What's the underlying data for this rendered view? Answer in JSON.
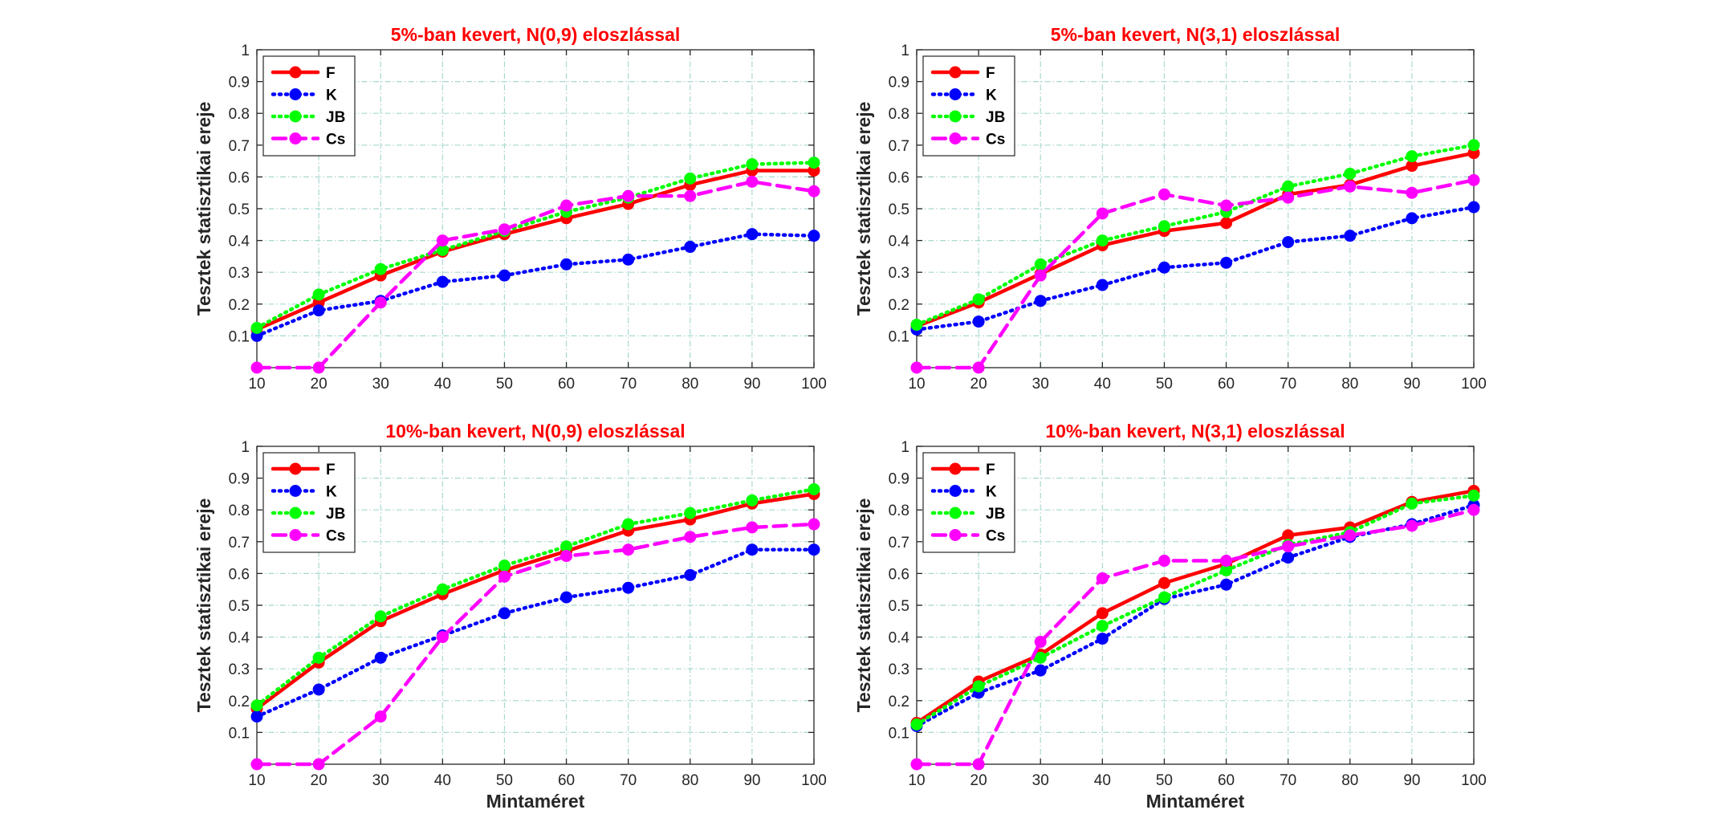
{
  "colors": {
    "F": "#ff0000",
    "K": "#0000ff",
    "JB": "#00ff00",
    "Cs": "#ff00ff",
    "title": "#ff0000",
    "grid": "#a8d8d0"
  },
  "chart_data": [
    {
      "type": "line",
      "title": "5%-ban kevert, N(0,9) eloszlással",
      "xlabel": "",
      "ylabel": "Tesztek statisztikai ereje",
      "x": [
        10,
        20,
        30,
        40,
        50,
        60,
        70,
        80,
        90,
        100
      ],
      "xlim": [
        10,
        100
      ],
      "ylim": [
        0,
        1
      ],
      "xticks": [
        "10",
        "20",
        "30",
        "40",
        "50",
        "60",
        "70",
        "80",
        "90",
        "100"
      ],
      "yticks": [
        "0.1",
        "0.2",
        "0.3",
        "0.4",
        "0.5",
        "0.6",
        "0.7",
        "0.8",
        "0.9",
        "1"
      ],
      "grid": true,
      "legend": "top-left",
      "series": [
        {
          "name": "F",
          "style": "solid",
          "values": [
            0.12,
            0.205,
            0.29,
            0.365,
            0.42,
            0.47,
            0.515,
            0.575,
            0.62,
            0.62
          ]
        },
        {
          "name": "K",
          "style": "dotted",
          "values": [
            0.1,
            0.18,
            0.21,
            0.27,
            0.29,
            0.325,
            0.34,
            0.38,
            0.42,
            0.415
          ]
        },
        {
          "name": "JB",
          "style": "dotted",
          "values": [
            0.125,
            0.23,
            0.31,
            0.37,
            0.43,
            0.49,
            0.535,
            0.595,
            0.64,
            0.645
          ]
        },
        {
          "name": "Cs",
          "style": "dashed",
          "values": [
            0.0,
            0.0,
            0.205,
            0.4,
            0.435,
            0.51,
            0.54,
            0.54,
            0.585,
            0.555
          ]
        }
      ]
    },
    {
      "type": "line",
      "title": "5%-ban kevert, N(3,1) eloszlással",
      "xlabel": "",
      "ylabel": "Tesztek statisztikai ereje",
      "x": [
        10,
        20,
        30,
        40,
        50,
        60,
        70,
        80,
        90,
        100
      ],
      "xlim": [
        10,
        100
      ],
      "ylim": [
        0,
        1
      ],
      "xticks": [
        "10",
        "20",
        "30",
        "40",
        "50",
        "60",
        "70",
        "80",
        "90",
        "100"
      ],
      "yticks": [
        "0.1",
        "0.2",
        "0.3",
        "0.4",
        "0.5",
        "0.6",
        "0.7",
        "0.8",
        "0.9",
        "1"
      ],
      "grid": true,
      "legend": "top-left",
      "series": [
        {
          "name": "F",
          "style": "solid",
          "values": [
            0.13,
            0.205,
            0.295,
            0.385,
            0.43,
            0.455,
            0.545,
            0.575,
            0.635,
            0.675
          ]
        },
        {
          "name": "K",
          "style": "dotted",
          "values": [
            0.12,
            0.145,
            0.21,
            0.26,
            0.315,
            0.33,
            0.395,
            0.415,
            0.47,
            0.505
          ]
        },
        {
          "name": "JB",
          "style": "dotted",
          "values": [
            0.135,
            0.215,
            0.325,
            0.4,
            0.445,
            0.49,
            0.57,
            0.61,
            0.665,
            0.7
          ]
        },
        {
          "name": "Cs",
          "style": "dashed",
          "values": [
            0.0,
            0.0,
            0.29,
            0.485,
            0.545,
            0.51,
            0.535,
            0.57,
            0.55,
            0.59
          ]
        }
      ]
    },
    {
      "type": "line",
      "title": "10%-ban kevert, N(0,9) eloszlással",
      "xlabel": "Mintaméret",
      "ylabel": "Tesztek statisztikai ereje",
      "x": [
        10,
        20,
        30,
        40,
        50,
        60,
        70,
        80,
        90,
        100
      ],
      "xlim": [
        10,
        100
      ],
      "ylim": [
        0,
        1
      ],
      "xticks": [
        "10",
        "20",
        "30",
        "40",
        "50",
        "60",
        "70",
        "80",
        "90",
        "100"
      ],
      "yticks": [
        "0.1",
        "0.2",
        "0.3",
        "0.4",
        "0.5",
        "0.6",
        "0.7",
        "0.8",
        "0.9",
        "1"
      ],
      "grid": true,
      "legend": "top-left",
      "series": [
        {
          "name": "F",
          "style": "solid",
          "values": [
            0.175,
            0.32,
            0.45,
            0.535,
            0.61,
            0.67,
            0.735,
            0.77,
            0.82,
            0.85
          ]
        },
        {
          "name": "K",
          "style": "dotted",
          "values": [
            0.15,
            0.235,
            0.335,
            0.405,
            0.475,
            0.525,
            0.555,
            0.595,
            0.675,
            0.675
          ]
        },
        {
          "name": "JB",
          "style": "dotted",
          "values": [
            0.185,
            0.335,
            0.465,
            0.55,
            0.625,
            0.685,
            0.755,
            0.79,
            0.83,
            0.865
          ]
        },
        {
          "name": "Cs",
          "style": "dashed",
          "values": [
            0.0,
            0.0,
            0.15,
            0.4,
            0.59,
            0.655,
            0.675,
            0.715,
            0.745,
            0.755
          ]
        }
      ]
    },
    {
      "type": "line",
      "title": "10%-ban kevert, N(3,1) eloszlással",
      "xlabel": "Mintaméret",
      "ylabel": "Tesztek statisztikai ereje",
      "x": [
        10,
        20,
        30,
        40,
        50,
        60,
        70,
        80,
        90,
        100
      ],
      "xlim": [
        10,
        100
      ],
      "ylim": [
        0,
        1
      ],
      "xticks": [
        "10",
        "20",
        "30",
        "40",
        "50",
        "60",
        "70",
        "80",
        "90",
        "100"
      ],
      "yticks": [
        "0.1",
        "0.2",
        "0.3",
        "0.4",
        "0.5",
        "0.6",
        "0.7",
        "0.8",
        "0.9",
        "1"
      ],
      "grid": true,
      "legend": "top-left",
      "series": [
        {
          "name": "F",
          "style": "solid",
          "values": [
            0.13,
            0.26,
            0.345,
            0.475,
            0.57,
            0.63,
            0.72,
            0.745,
            0.825,
            0.86
          ]
        },
        {
          "name": "K",
          "style": "dotted",
          "values": [
            0.12,
            0.225,
            0.295,
            0.395,
            0.52,
            0.565,
            0.65,
            0.715,
            0.755,
            0.815
          ]
        },
        {
          "name": "JB",
          "style": "dotted",
          "values": [
            0.125,
            0.245,
            0.335,
            0.435,
            0.525,
            0.61,
            0.69,
            0.73,
            0.82,
            0.845
          ]
        },
        {
          "name": "Cs",
          "style": "dashed",
          "values": [
            0.0,
            0.0,
            0.385,
            0.585,
            0.64,
            0.64,
            0.685,
            0.72,
            0.75,
            0.8
          ]
        }
      ]
    }
  ]
}
